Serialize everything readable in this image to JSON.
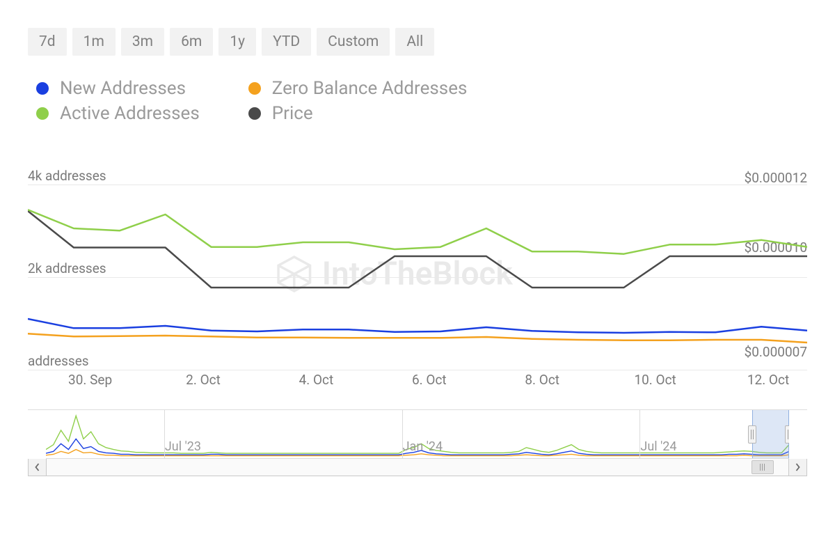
{
  "time_ranges": [
    "7d",
    "1m",
    "3m",
    "6m",
    "1y",
    "YTD",
    "Custom",
    "All"
  ],
  "legend": [
    {
      "label": "New Addresses",
      "color": "#1a3fe0"
    },
    {
      "label": "Active Addresses",
      "color": "#8fcf4a"
    },
    {
      "label": "Zero Balance Addresses",
      "color": "#f4a11e"
    },
    {
      "label": "Price",
      "color": "#4a4a4a"
    }
  ],
  "watermark": "IntoTheBlock",
  "main_chart": {
    "type": "line",
    "background_color": "#ffffff",
    "grid_color": "#e9e9e9",
    "line_width": 2.5,
    "left_axis": {
      "label_suffix": "addresses",
      "ticks": [
        {
          "value": 4000,
          "label": "4k addresses"
        },
        {
          "value": 2000,
          "label": "2k addresses"
        },
        {
          "value": 0,
          "label": "addresses"
        }
      ],
      "ylim": [
        -400,
        4400
      ]
    },
    "right_axis": {
      "ticks": [
        {
          "value": 1.2e-05,
          "label": "$0.000012"
        },
        {
          "value": 1e-05,
          "label": "$0.000010"
        },
        {
          "value": 7e-06,
          "label": "$0.000007"
        }
      ],
      "ylim": [
        6.2e-06,
        1.26e-05
      ]
    },
    "x_ticks": [
      "30. Sep",
      "2. Oct",
      "4. Oct",
      "6. Oct",
      "8. Oct",
      "10. Oct",
      "12. Oct"
    ],
    "x_tick_positions_pct": [
      8,
      22.5,
      37,
      51.5,
      66,
      80.5,
      95
    ],
    "series": {
      "active_addresses": {
        "axis": "left",
        "color": "#8fcf4a",
        "y": [
          3450,
          3050,
          3000,
          3350,
          2650,
          2650,
          2750,
          2750,
          2600,
          2650,
          3050,
          2550,
          2550,
          2500,
          2700,
          2700,
          2800,
          2650
        ]
      },
      "new_addresses": {
        "axis": "left",
        "color": "#1a3fe0",
        "y": [
          1100,
          900,
          900,
          950,
          850,
          830,
          870,
          870,
          820,
          830,
          920,
          840,
          810,
          800,
          820,
          810,
          930,
          850
        ]
      },
      "zero_balance": {
        "axis": "left",
        "color": "#f4a11e",
        "y": [
          780,
          720,
          730,
          740,
          720,
          700,
          700,
          690,
          690,
          690,
          710,
          670,
          650,
          640,
          640,
          650,
          650,
          590
        ]
      },
      "price": {
        "axis": "right",
        "color": "#4a4a4a",
        "y": [
          1.13e-05,
          1.025e-05,
          1.025e-05,
          1.025e-05,
          9.1e-06,
          9.1e-06,
          9.1e-06,
          9.1e-06,
          1e-05,
          1e-05,
          1e-05,
          9.1e-06,
          9.1e-06,
          9.1e-06,
          1e-05,
          1e-05,
          1e-05,
          1e-05
        ]
      }
    }
  },
  "navigator": {
    "x_ticks": [
      {
        "label": "Jul '23",
        "pos_pct": 16
      },
      {
        "label": "Jan '24",
        "pos_pct": 48
      },
      {
        "label": "Jul '24",
        "pos_pct": 80
      }
    ],
    "selection": {
      "left_pct": 95,
      "right_pct": 100
    },
    "scrollbar_thumb": {
      "left_pct": 95,
      "width_pct": 3
    },
    "ylim": [
      0,
      100
    ],
    "series": {
      "green": {
        "color": "#8fcf4a",
        "y": [
          18,
          28,
          58,
          35,
          88,
          40,
          55,
          30,
          22,
          18,
          15,
          14,
          12,
          12,
          11,
          11,
          11,
          11,
          10,
          10,
          10,
          10,
          12,
          11,
          10,
          10,
          10,
          10,
          10,
          10,
          10,
          10,
          10,
          10,
          10,
          10,
          10,
          10,
          10,
          10,
          10,
          10,
          10,
          10,
          10,
          10,
          10,
          10,
          18,
          22,
          30,
          20,
          16,
          14,
          12,
          11,
          11,
          11,
          11,
          11,
          11,
          11,
          12,
          14,
          22,
          18,
          14,
          12,
          16,
          22,
          28,
          18,
          14,
          12,
          11,
          11,
          11,
          11,
          11,
          11,
          11,
          11,
          11,
          11,
          11,
          11,
          11,
          11,
          11,
          11,
          12,
          13,
          14,
          15,
          14,
          12,
          11,
          11,
          11,
          28
        ]
      },
      "blue": {
        "color": "#1a3fe0",
        "y": [
          10,
          14,
          30,
          18,
          40,
          20,
          24,
          14,
          11,
          10,
          8,
          8,
          7,
          7,
          7,
          7,
          7,
          7,
          7,
          7,
          7,
          7,
          8,
          8,
          7,
          7,
          7,
          7,
          7,
          7,
          7,
          7,
          7,
          7,
          7,
          7,
          7,
          7,
          7,
          7,
          7,
          7,
          7,
          7,
          7,
          7,
          7,
          7,
          10,
          12,
          16,
          11,
          9,
          8,
          7,
          7,
          7,
          7,
          7,
          7,
          7,
          7,
          8,
          9,
          12,
          10,
          8,
          7,
          9,
          12,
          15,
          10,
          8,
          7,
          7,
          7,
          7,
          7,
          7,
          7,
          7,
          7,
          7,
          7,
          7,
          7,
          7,
          7,
          7,
          7,
          7,
          8,
          8,
          9,
          8,
          7,
          7,
          7,
          7,
          14
        ]
      },
      "orange": {
        "color": "#f4a11e",
        "y": [
          6,
          8,
          14,
          10,
          18,
          11,
          12,
          8,
          6,
          6,
          5,
          5,
          5,
          5,
          5,
          5,
          5,
          5,
          5,
          5,
          5,
          5,
          5,
          5,
          5,
          5,
          5,
          5,
          5,
          5,
          5,
          5,
          5,
          5,
          5,
          5,
          5,
          5,
          5,
          5,
          5,
          5,
          5,
          5,
          5,
          5,
          5,
          5,
          6,
          7,
          9,
          7,
          6,
          5,
          5,
          5,
          5,
          5,
          5,
          5,
          5,
          5,
          5,
          6,
          7,
          6,
          5,
          5,
          6,
          7,
          8,
          6,
          5,
          5,
          5,
          5,
          5,
          5,
          5,
          5,
          5,
          5,
          5,
          5,
          5,
          5,
          5,
          5,
          5,
          5,
          5,
          5,
          5,
          6,
          5,
          5,
          5,
          5,
          5,
          7
        ]
      }
    }
  },
  "colors": {
    "axis_text": "#7a7a7a",
    "button_bg": "#f2f2f2",
    "button_text": "#808080"
  }
}
